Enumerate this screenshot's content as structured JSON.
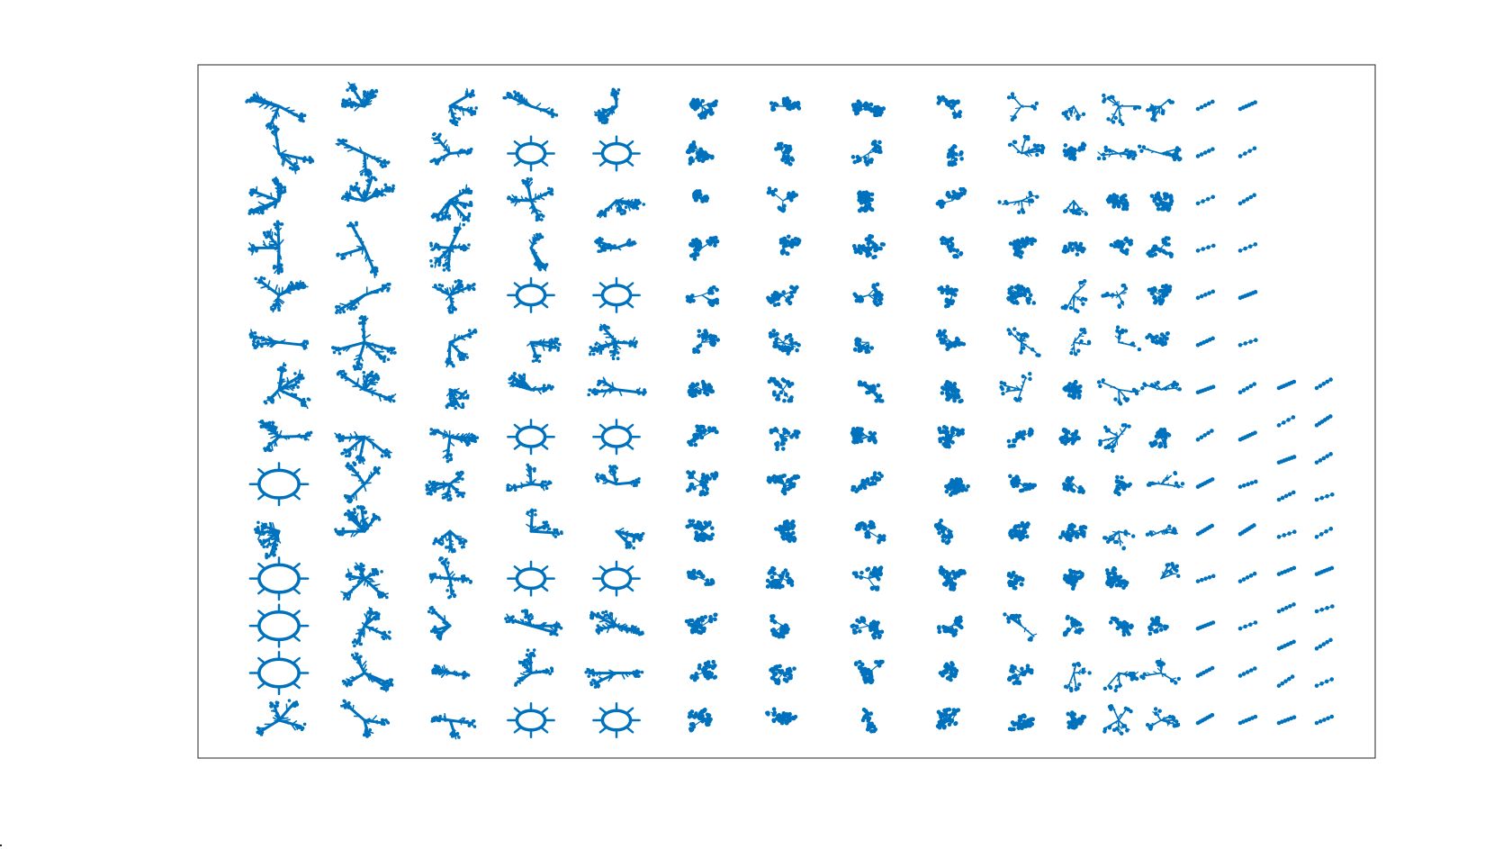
{
  "figure": {
    "background": "#ffffff",
    "frame_color": "#262626",
    "graph_color": "#0072bd",
    "axes_visible": false,
    "description_type": "graph plot of many connected components"
  },
  "components": {
    "column_counts": [
      14,
      14,
      14,
      14,
      14,
      14,
      14,
      14,
      14,
      14,
      14,
      14,
      14,
      14,
      14,
      10,
      10
    ],
    "styles": [
      "tree",
      "cycle",
      "cluster",
      "dots"
    ]
  }
}
